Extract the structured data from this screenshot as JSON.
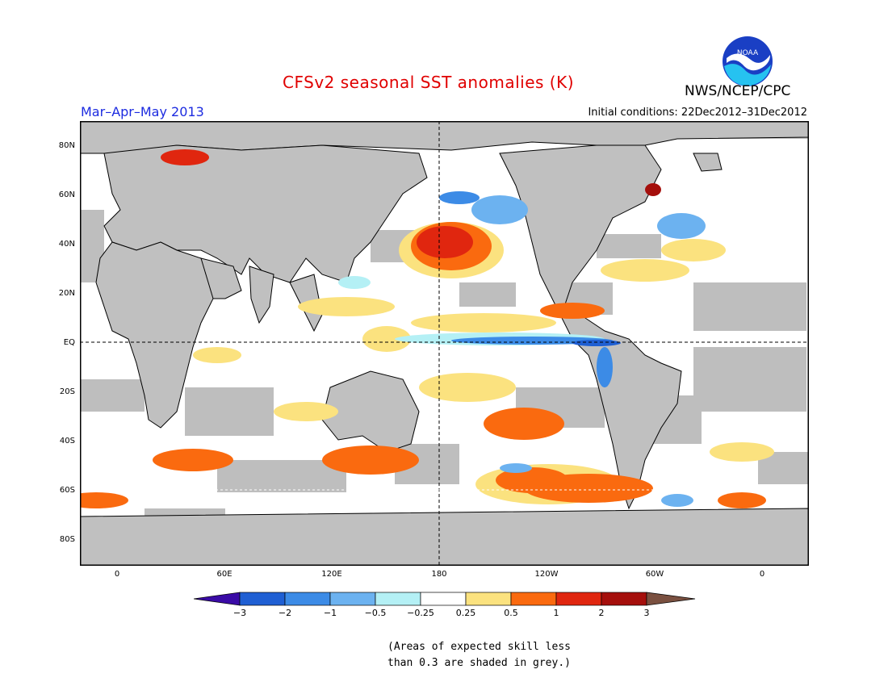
{
  "header": {
    "title": "CFSv2 seasonal SST anomalies (K)",
    "agency": "NWS/NCEP/CPC",
    "season": "Mar–Apr–May 2013",
    "initial_conditions": "Initial conditions: 22Dec2012–31Dec2012",
    "logo_text": "NOAA"
  },
  "map": {
    "lat_labels": [
      "80N",
      "60N",
      "40N",
      "20N",
      "EQ",
      "20S",
      "40S",
      "60S",
      "80S"
    ],
    "lon_labels": [
      "0",
      "60E",
      "120E",
      "180",
      "120W",
      "60W",
      "0"
    ],
    "colors": {
      "land": "#c0c0c0",
      "ocean": "#ffffff",
      "grey_skill": "#bebebe"
    }
  },
  "colorbar": {
    "labels": [
      "−3",
      "−2",
      "−1",
      "−0.5",
      "−0.25",
      "0.25",
      "0.5",
      "1",
      "2",
      "3"
    ],
    "colors": [
      "#3a0ba6",
      "#1f5fd3",
      "#3c8be6",
      "#6cb2f0",
      "#b4f0f5",
      "#ffffff",
      "#fbe27f",
      "#fa6a0f",
      "#e0260f",
      "#a50f0c",
      "#7a5040"
    ]
  },
  "footnote": {
    "line1": "(Areas of expected skill less",
    "line2": "than 0.3 are shaded in grey.)"
  }
}
